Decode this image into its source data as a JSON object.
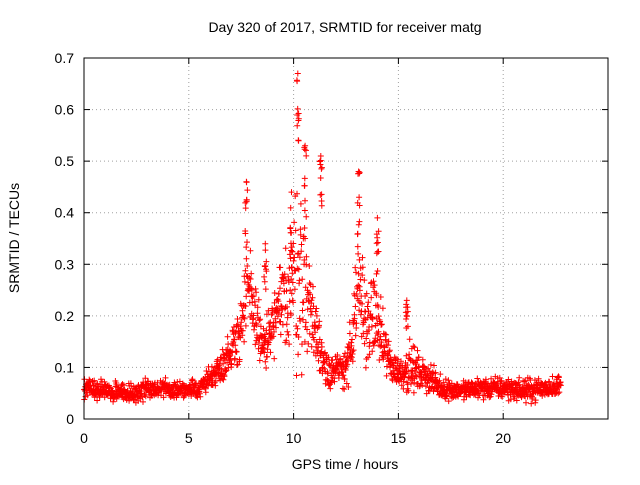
{
  "chart_data": {
    "type": "scatter",
    "title": "Day 320 of 2017, SRMTID for receiver matg",
    "xlabel": "GPS time / hours",
    "ylabel": "SRMTID / TECUs",
    "xlim": [
      0,
      25
    ],
    "ylim": [
      0,
      0.7
    ],
    "xticks": [
      0,
      5,
      10,
      15,
      20
    ],
    "xtick_labels": [
      "0",
      "5",
      "10",
      "15",
      "20"
    ],
    "yticks": [
      0,
      0.1,
      0.2,
      0.3,
      0.4,
      0.5,
      0.6,
      0.7
    ],
    "ytick_labels": [
      "0",
      "0.1",
      "0.2",
      "0.3",
      "0.4",
      "0.5",
      "0.6",
      "0.7"
    ],
    "grid": true,
    "marker": "+",
    "series": [
      {
        "name": "SRMTID",
        "color": "#ff0000",
        "x_start": 0,
        "x_end": 22.75,
        "envelope_x": [
          0,
          1,
          2,
          3,
          4,
          5,
          5.5,
          6,
          6.5,
          7,
          7.5,
          7.8,
          8.2,
          8.5,
          8.8,
          9.2,
          9.6,
          10.0,
          10.2,
          10.5,
          10.8,
          11.2,
          11.6,
          12.0,
          12.4,
          12.8,
          13.1,
          13.5,
          13.9,
          14.3,
          14.7,
          15.1,
          15.5,
          16.0,
          16.5,
          17.0,
          18,
          19,
          20,
          21,
          22,
          22.75
        ],
        "envelope_mean": [
          0.06,
          0.055,
          0.05,
          0.055,
          0.06,
          0.055,
          0.06,
          0.08,
          0.1,
          0.13,
          0.18,
          0.25,
          0.2,
          0.14,
          0.15,
          0.2,
          0.24,
          0.27,
          0.3,
          0.26,
          0.22,
          0.14,
          0.1,
          0.09,
          0.1,
          0.14,
          0.26,
          0.18,
          0.2,
          0.14,
          0.1,
          0.09,
          0.1,
          0.09,
          0.08,
          0.06,
          0.055,
          0.06,
          0.06,
          0.055,
          0.06,
          0.065
        ],
        "envelope_spread": [
          0.03,
          0.025,
          0.025,
          0.03,
          0.025,
          0.025,
          0.03,
          0.03,
          0.04,
          0.06,
          0.1,
          0.13,
          0.1,
          0.06,
          0.08,
          0.1,
          0.14,
          0.2,
          0.3,
          0.18,
          0.13,
          0.08,
          0.06,
          0.05,
          0.06,
          0.09,
          0.17,
          0.1,
          0.12,
          0.08,
          0.05,
          0.04,
          0.07,
          0.05,
          0.04,
          0.03,
          0.025,
          0.03,
          0.03,
          0.03,
          0.03,
          0.03
        ],
        "peaks": [
          {
            "x": 7.75,
            "y": 0.46
          },
          {
            "x": 8.65,
            "y": 0.34
          },
          {
            "x": 9.9,
            "y": 0.44
          },
          {
            "x": 10.2,
            "y": 0.67
          },
          {
            "x": 10.55,
            "y": 0.53
          },
          {
            "x": 11.3,
            "y": 0.51
          },
          {
            "x": 13.1,
            "y": 0.48
          },
          {
            "x": 14.0,
            "y": 0.39
          },
          {
            "x": 15.4,
            "y": 0.23
          }
        ]
      }
    ]
  }
}
